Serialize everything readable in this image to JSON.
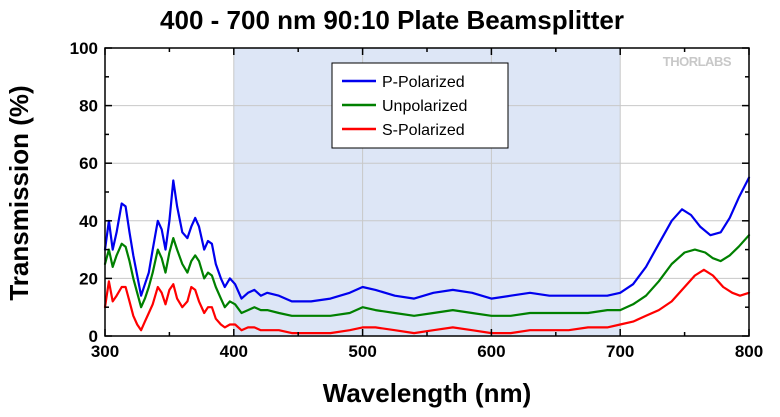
{
  "chart_data": {
    "type": "line",
    "title": "400 - 700 nm 90:10 Plate Beamsplitter",
    "xlabel": "Wavelength (nm)",
    "ylabel": "Transmission (%)",
    "xlim": [
      300,
      800
    ],
    "ylim": [
      0,
      100
    ],
    "x_ticks": [
      "300",
      "400",
      "500",
      "600",
      "700",
      "800"
    ],
    "y_ticks": [
      "0",
      "20",
      "40",
      "60",
      "80",
      "100"
    ],
    "grid": true,
    "legend_position": "top-center",
    "shaded_region": [
      400,
      700
    ],
    "brand": "THORLABS",
    "series": [
      {
        "name": "P-Polarized",
        "color": "#0000ee",
        "points": [
          [
            300,
            30
          ],
          [
            303,
            40
          ],
          [
            306,
            30
          ],
          [
            309,
            36
          ],
          [
            313,
            46
          ],
          [
            316,
            45
          ],
          [
            319,
            36
          ],
          [
            322,
            28
          ],
          [
            325,
            21
          ],
          [
            328,
            14
          ],
          [
            331,
            18
          ],
          [
            334,
            22
          ],
          [
            337,
            30
          ],
          [
            341,
            40
          ],
          [
            344,
            37
          ],
          [
            347,
            30
          ],
          [
            350,
            40
          ],
          [
            353,
            54
          ],
          [
            356,
            45
          ],
          [
            360,
            36
          ],
          [
            364,
            34
          ],
          [
            367,
            38
          ],
          [
            370,
            41
          ],
          [
            373,
            38
          ],
          [
            377,
            30
          ],
          [
            380,
            33
          ],
          [
            383,
            32
          ],
          [
            386,
            25
          ],
          [
            390,
            20
          ],
          [
            393,
            17
          ],
          [
            397,
            20
          ],
          [
            401,
            18
          ],
          [
            406,
            13
          ],
          [
            411,
            15
          ],
          [
            416,
            16
          ],
          [
            421,
            14
          ],
          [
            426,
            15
          ],
          [
            435,
            14
          ],
          [
            445,
            12
          ],
          [
            460,
            12
          ],
          [
            475,
            13
          ],
          [
            490,
            15
          ],
          [
            500,
            17
          ],
          [
            510,
            16
          ],
          [
            525,
            14
          ],
          [
            540,
            13
          ],
          [
            555,
            15
          ],
          [
            570,
            16
          ],
          [
            585,
            15
          ],
          [
            600,
            13
          ],
          [
            615,
            14
          ],
          [
            630,
            15
          ],
          [
            645,
            14
          ],
          [
            660,
            14
          ],
          [
            675,
            14
          ],
          [
            690,
            14
          ],
          [
            700,
            15
          ],
          [
            710,
            18
          ],
          [
            720,
            24
          ],
          [
            730,
            32
          ],
          [
            740,
            40
          ],
          [
            748,
            44
          ],
          [
            755,
            42
          ],
          [
            762,
            38
          ],
          [
            770,
            35
          ],
          [
            778,
            36
          ],
          [
            785,
            41
          ],
          [
            792,
            48
          ],
          [
            800,
            55
          ]
        ]
      },
      {
        "name": "Unpolarized",
        "color": "#008000",
        "points": [
          [
            300,
            25
          ],
          [
            303,
            30
          ],
          [
            306,
            24
          ],
          [
            309,
            28
          ],
          [
            313,
            32
          ],
          [
            316,
            31
          ],
          [
            319,
            26
          ],
          [
            322,
            20
          ],
          [
            325,
            15
          ],
          [
            328,
            10
          ],
          [
            331,
            13
          ],
          [
            334,
            17
          ],
          [
            337,
            22
          ],
          [
            341,
            30
          ],
          [
            344,
            27
          ],
          [
            347,
            22
          ],
          [
            350,
            29
          ],
          [
            353,
            34
          ],
          [
            356,
            30
          ],
          [
            360,
            25
          ],
          [
            364,
            22
          ],
          [
            367,
            26
          ],
          [
            370,
            28
          ],
          [
            373,
            26
          ],
          [
            377,
            20
          ],
          [
            380,
            22
          ],
          [
            383,
            21
          ],
          [
            386,
            17
          ],
          [
            390,
            13
          ],
          [
            393,
            10
          ],
          [
            397,
            12
          ],
          [
            401,
            11
          ],
          [
            406,
            8
          ],
          [
            411,
            9
          ],
          [
            416,
            10
          ],
          [
            421,
            9
          ],
          [
            426,
            9
          ],
          [
            435,
            8
          ],
          [
            445,
            7
          ],
          [
            460,
            7
          ],
          [
            475,
            7
          ],
          [
            490,
            8
          ],
          [
            500,
            10
          ],
          [
            510,
            9
          ],
          [
            525,
            8
          ],
          [
            540,
            7
          ],
          [
            555,
            8
          ],
          [
            570,
            9
          ],
          [
            585,
            8
          ],
          [
            600,
            7
          ],
          [
            615,
            7
          ],
          [
            630,
            8
          ],
          [
            645,
            8
          ],
          [
            660,
            8
          ],
          [
            675,
            8
          ],
          [
            690,
            9
          ],
          [
            700,
            9
          ],
          [
            710,
            11
          ],
          [
            720,
            14
          ],
          [
            730,
            19
          ],
          [
            740,
            25
          ],
          [
            750,
            29
          ],
          [
            758,
            30
          ],
          [
            766,
            29
          ],
          [
            772,
            27
          ],
          [
            778,
            26
          ],
          [
            785,
            28
          ],
          [
            792,
            31
          ],
          [
            800,
            35
          ]
        ]
      },
      {
        "name": "S-Polarized",
        "color": "#ff0000",
        "points": [
          [
            300,
            10
          ],
          [
            303,
            19
          ],
          [
            306,
            12
          ],
          [
            309,
            14
          ],
          [
            313,
            17
          ],
          [
            316,
            17
          ],
          [
            319,
            12
          ],
          [
            322,
            7
          ],
          [
            325,
            4
          ],
          [
            328,
            2
          ],
          [
            331,
            5
          ],
          [
            334,
            8
          ],
          [
            337,
            11
          ],
          [
            341,
            17
          ],
          [
            344,
            15
          ],
          [
            347,
            11
          ],
          [
            350,
            16
          ],
          [
            353,
            18
          ],
          [
            356,
            13
          ],
          [
            360,
            10
          ],
          [
            364,
            12
          ],
          [
            367,
            17
          ],
          [
            370,
            16
          ],
          [
            373,
            12
          ],
          [
            377,
            8
          ],
          [
            380,
            10
          ],
          [
            383,
            10
          ],
          [
            386,
            6
          ],
          [
            390,
            4
          ],
          [
            393,
            3
          ],
          [
            397,
            4
          ],
          [
            401,
            4
          ],
          [
            406,
            2
          ],
          [
            411,
            3
          ],
          [
            416,
            3
          ],
          [
            421,
            2
          ],
          [
            426,
            2
          ],
          [
            435,
            2
          ],
          [
            445,
            1
          ],
          [
            460,
            1
          ],
          [
            475,
            1
          ],
          [
            490,
            2
          ],
          [
            500,
            3
          ],
          [
            510,
            3
          ],
          [
            525,
            2
          ],
          [
            540,
            1
          ],
          [
            555,
            2
          ],
          [
            570,
            3
          ],
          [
            585,
            2
          ],
          [
            600,
            1
          ],
          [
            615,
            1
          ],
          [
            630,
            2
          ],
          [
            645,
            2
          ],
          [
            660,
            2
          ],
          [
            675,
            3
          ],
          [
            690,
            3
          ],
          [
            700,
            4
          ],
          [
            710,
            5
          ],
          [
            720,
            7
          ],
          [
            730,
            9
          ],
          [
            740,
            12
          ],
          [
            750,
            17
          ],
          [
            758,
            21
          ],
          [
            765,
            23
          ],
          [
            772,
            21
          ],
          [
            780,
            17
          ],
          [
            787,
            15
          ],
          [
            793,
            14
          ],
          [
            800,
            15
          ]
        ]
      }
    ]
  }
}
